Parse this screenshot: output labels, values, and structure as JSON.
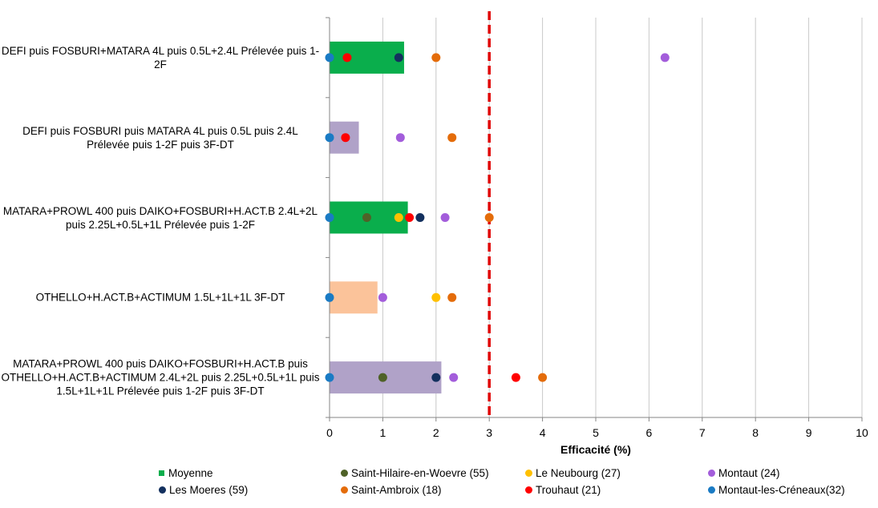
{
  "chart_data": {
    "type": "bar",
    "orientation": "horizontal",
    "categories": [
      "DEFI puis FOSBURI+MATARA 4L puis 0.5L+2.4L Prélevée puis 1-2F",
      "DEFI puis FOSBURI puis MATARA 4L puis 0.5L puis 2.4L Prélevée puis 1-2F puis 3F-DT",
      "MATARA+PROWL 400 puis DAIKO+FOSBURI+H.ACT.B 2.4L+2L puis 2.25L+0.5L+1L Prélevée puis 1-2F",
      "OTHELLO+H.ACT.B+ACTIMUM 1.5L+1L+1L 3F-DT",
      "MATARA+PROWL 400 puis DAIKO+FOSBURI+H.ACT.B puis OTHELLO+H.ACT.B+ACTIMUM 2.4L+2L puis 2.25L+0.5L+1L puis 1.5L+1L+1L Prélevée puis 1-2F puis 3F-DT"
    ],
    "bar_series": {
      "name": "Moyenne",
      "values": [
        1.4,
        0.55,
        1.47,
        0.9,
        2.1
      ],
      "colors": [
        "#0aae4c",
        "#b0a2c8",
        "#0aae4c",
        "#fbc39a",
        "#b0a2c8"
      ]
    },
    "series": [
      {
        "name": "Saint-Hilaire-en-Woevre (55)",
        "color": "#4f6228",
        "values": [
          null,
          null,
          0.7,
          null,
          1.0
        ]
      },
      {
        "name": "Le Neubourg (27)",
        "color": "#ffc000",
        "values": [
          null,
          null,
          1.3,
          2.0,
          null
        ]
      },
      {
        "name": "Montaut (24)",
        "color": "#a35ddb",
        "values": [
          6.3,
          1.33,
          2.17,
          1.0,
          2.33
        ]
      },
      {
        "name": "Les Moeres (59)",
        "color": "#13305e",
        "values": [
          1.3,
          null,
          1.7,
          null,
          2.0
        ]
      },
      {
        "name": "Saint-Ambroix (18)",
        "color": "#e46c0a",
        "values": [
          2.0,
          2.3,
          3.0,
          2.3,
          4.0
        ]
      },
      {
        "name": "Trouhaut (21)",
        "color": "#ff0000",
        "values": [
          0.33,
          0.3,
          1.5,
          null,
          3.5
        ]
      },
      {
        "name": "Montaut-les-Créneaux(32)",
        "color": "#1a7bc4",
        "values": [
          0.0,
          0.0,
          0.0,
          0.0,
          0.0
        ]
      }
    ],
    "xlabel": "Efficacité (%)",
    "xlim": [
      0,
      10
    ],
    "xticks": [
      "0",
      "1",
      "2",
      "3",
      "4",
      "5",
      "6",
      "7",
      "8",
      "9",
      "10"
    ],
    "threshold": 3,
    "threshold_color": "#e00000",
    "grid": true,
    "legend_position": "bottom"
  },
  "legend": [
    {
      "label": "Moyenne",
      "color": "#0aae4c",
      "shape": "square"
    },
    {
      "label": "Saint-Hilaire-en-Woevre (55)",
      "color": "#4f6228",
      "shape": "circle"
    },
    {
      "label": "Le Neubourg (27)",
      "color": "#ffc000",
      "shape": "circle"
    },
    {
      "label": "Montaut (24)",
      "color": "#a35ddb",
      "shape": "circle"
    },
    {
      "label": "Les Moeres (59)",
      "color": "#13305e",
      "shape": "circle"
    },
    {
      "label": "Saint-Ambroix (18)",
      "color": "#e46c0a",
      "shape": "circle"
    },
    {
      "label": "Trouhaut (21)",
      "color": "#ff0000",
      "shape": "circle"
    },
    {
      "label": "Montaut-les-Créneaux(32)",
      "color": "#1a7bc4",
      "shape": "circle"
    }
  ]
}
